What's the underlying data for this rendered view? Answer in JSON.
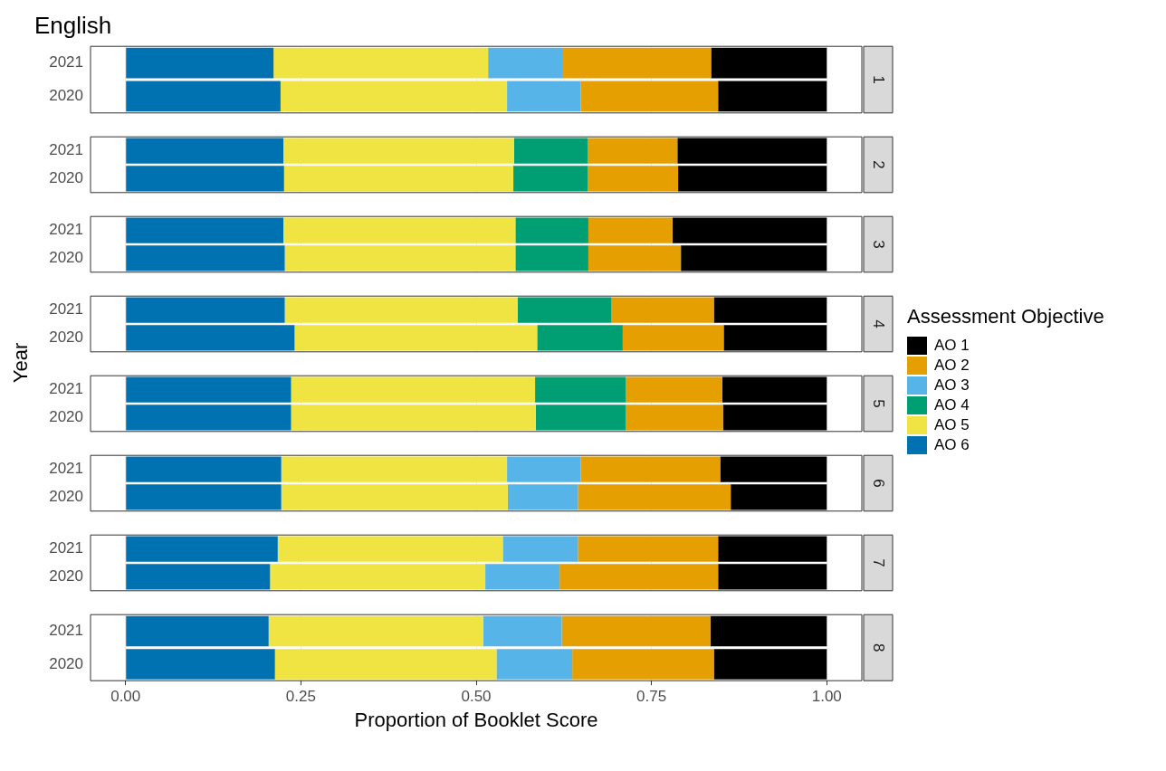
{
  "chart_data": [
    {
      "type": "bar",
      "orientation": "horizontal",
      "stacked": true,
      "title": "English",
      "legend_title": "Assessment Objective",
      "legend": "right",
      "annotations": [
        "1"
      ],
      "categories": [
        "2021",
        "2020"
      ],
      "xlim": [
        -0.05,
        1.05
      ],
      "xticks": [
        0,
        0.25,
        0.5,
        0.75,
        1
      ],
      "tick_labels": "y",
      "grid": "x",
      "series": [
        {
          "name": "AO 6",
          "color": "#0072b2",
          "values": [
            0.211,
            0.221
          ]
        },
        {
          "name": "AO 5",
          "color": "#f0e442",
          "values": [
            0.306,
            0.323
          ]
        },
        {
          "name": "AO 4",
          "color": "#009e73",
          "values": [
            null,
            null
          ]
        },
        {
          "name": "AO 3",
          "color": "#56b4e9",
          "values": [
            0.107,
            0.105
          ]
        },
        {
          "name": "AO 2",
          "color": "#e69f00",
          "values": [
            0.211,
            0.196
          ]
        },
        {
          "name": "AO 1",
          "color": "#000000",
          "values": [
            0.165,
            0.155
          ]
        }
      ]
    },
    {
      "type": "bar",
      "orientation": "horizontal",
      "stacked": true,
      "annotations": [
        "2"
      ],
      "categories": [
        "2021",
        "2020"
      ],
      "xlim": [
        -0.05,
        1.05
      ],
      "xticks": [
        0,
        0.25,
        0.5,
        0.75,
        1
      ],
      "tick_labels": "y",
      "grid": "x",
      "series": [
        {
          "color": "#0072b2",
          "values": [
            0.225,
            0.226
          ]
        },
        {
          "color": "#f0e442",
          "values": [
            0.329,
            0.327
          ]
        },
        {
          "color": "#009e73",
          "values": [
            0.105,
            0.106
          ]
        },
        {
          "color": "#56b4e9",
          "values": [
            null,
            null
          ]
        },
        {
          "color": "#e69f00",
          "values": [
            0.128,
            0.129
          ]
        },
        {
          "color": "#000000",
          "values": [
            0.213,
            0.212
          ]
        }
      ]
    },
    {
      "type": "bar",
      "orientation": "horizontal",
      "stacked": true,
      "annotations": [
        "3"
      ],
      "categories": [
        "2021",
        "2020"
      ],
      "xlim": [
        -0.05,
        1.05
      ],
      "xticks": [
        0,
        0.25,
        0.5,
        0.75,
        1
      ],
      "tick_labels": "y",
      "grid": "x",
      "series": [
        {
          "color": "#0072b2",
          "values": [
            0.225,
            0.227
          ]
        },
        {
          "color": "#f0e442",
          "values": [
            0.331,
            0.329
          ]
        },
        {
          "color": "#009e73",
          "values": [
            0.104,
            0.104
          ]
        },
        {
          "color": "#56b4e9",
          "values": [
            null,
            null
          ]
        },
        {
          "color": "#e69f00",
          "values": [
            0.12,
            0.132
          ]
        },
        {
          "color": "#000000",
          "values": [
            0.22,
            0.208
          ]
        }
      ]
    },
    {
      "type": "bar",
      "orientation": "horizontal",
      "stacked": true,
      "annotations": [
        "4"
      ],
      "ylabel": "Year",
      "categories": [
        "2021",
        "2020"
      ],
      "xlim": [
        -0.05,
        1.05
      ],
      "xticks": [
        0,
        0.25,
        0.5,
        0.75,
        1
      ],
      "tick_labels": "y",
      "grid": "x",
      "series": [
        {
          "color": "#0072b2",
          "values": [
            0.227,
            0.241
          ]
        },
        {
          "color": "#f0e442",
          "values": [
            0.332,
            0.346
          ]
        },
        {
          "color": "#009e73",
          "values": [
            0.134,
            0.122
          ]
        },
        {
          "color": "#56b4e9",
          "values": [
            null,
            null
          ]
        },
        {
          "color": "#e69f00",
          "values": [
            0.146,
            0.144
          ]
        },
        {
          "color": "#000000",
          "values": [
            0.161,
            0.147
          ]
        }
      ]
    },
    {
      "type": "bar",
      "orientation": "horizontal",
      "stacked": true,
      "annotations": [
        "5"
      ],
      "categories": [
        "2021",
        "2020"
      ],
      "xlim": [
        -0.05,
        1.05
      ],
      "xticks": [
        0,
        0.25,
        0.5,
        0.75,
        1
      ],
      "tick_labels": "y",
      "grid": "x",
      "series": [
        {
          "color": "#0072b2",
          "values": [
            0.236,
            0.236
          ]
        },
        {
          "color": "#f0e442",
          "values": [
            0.348,
            0.349
          ]
        },
        {
          "color": "#009e73",
          "values": [
            0.129,
            0.128
          ]
        },
        {
          "color": "#56b4e9",
          "values": [
            null,
            null
          ]
        },
        {
          "color": "#e69f00",
          "values": [
            0.138,
            0.139
          ]
        },
        {
          "color": "#000000",
          "values": [
            0.149,
            0.148
          ]
        }
      ]
    },
    {
      "type": "bar",
      "orientation": "horizontal",
      "stacked": true,
      "annotations": [
        "6"
      ],
      "categories": [
        "2021",
        "2020"
      ],
      "xlim": [
        -0.05,
        1.05
      ],
      "xticks": [
        0,
        0.25,
        0.5,
        0.75,
        1
      ],
      "tick_labels": "y",
      "grid": "x",
      "series": [
        {
          "color": "#0072b2",
          "values": [
            0.222,
            0.222
          ]
        },
        {
          "color": "#f0e442",
          "values": [
            0.322,
            0.323
          ]
        },
        {
          "color": "#009e73",
          "values": [
            null,
            null
          ]
        },
        {
          "color": "#56b4e9",
          "values": [
            0.105,
            0.1
          ]
        },
        {
          "color": "#e69f00",
          "values": [
            0.199,
            0.218
          ]
        },
        {
          "color": "#000000",
          "values": [
            0.152,
            0.137
          ]
        }
      ]
    },
    {
      "type": "bar",
      "orientation": "horizontal",
      "stacked": true,
      "annotations": [
        "7"
      ],
      "categories": [
        "2021",
        "2020"
      ],
      "xlim": [
        -0.05,
        1.05
      ],
      "xticks": [
        0,
        0.25,
        0.5,
        0.75,
        1
      ],
      "tick_labels": "y",
      "grid": "x",
      "series": [
        {
          "color": "#0072b2",
          "values": [
            0.217,
            0.206
          ]
        },
        {
          "color": "#f0e442",
          "values": [
            0.321,
            0.307
          ]
        },
        {
          "color": "#009e73",
          "values": [
            null,
            null
          ]
        },
        {
          "color": "#56b4e9",
          "values": [
            0.107,
            0.106
          ]
        },
        {
          "color": "#e69f00",
          "values": [
            0.2,
            0.226
          ]
        },
        {
          "color": "#000000",
          "values": [
            0.155,
            0.155
          ]
        }
      ]
    },
    {
      "type": "bar",
      "orientation": "horizontal",
      "stacked": true,
      "xlabel": "Proportion of Booklet Score",
      "annotations": [
        "8"
      ],
      "categories": [
        "2021",
        "2020"
      ],
      "xlim": [
        -0.05,
        1.05
      ],
      "xticks": [
        {
          "value": 0,
          "label": "0.00"
        },
        {
          "value": 0.25,
          "label": "0.25"
        },
        {
          "value": 0.5,
          "label": "0.50"
        },
        {
          "value": 0.75,
          "label": "0.75"
        },
        {
          "value": 1,
          "label": "1.00"
        }
      ],
      "grid": "x",
      "series": [
        {
          "color": "#0072b2",
          "values": [
            0.204,
            0.213
          ]
        },
        {
          "color": "#f0e442",
          "values": [
            0.306,
            0.316
          ]
        },
        {
          "color": "#009e73",
          "values": [
            null,
            null
          ]
        },
        {
          "color": "#56b4e9",
          "values": [
            0.112,
            0.108
          ]
        },
        {
          "color": "#e69f00",
          "values": [
            0.212,
            0.202
          ]
        },
        {
          "color": "#000000",
          "values": [
            0.166,
            0.161
          ]
        }
      ]
    }
  ]
}
